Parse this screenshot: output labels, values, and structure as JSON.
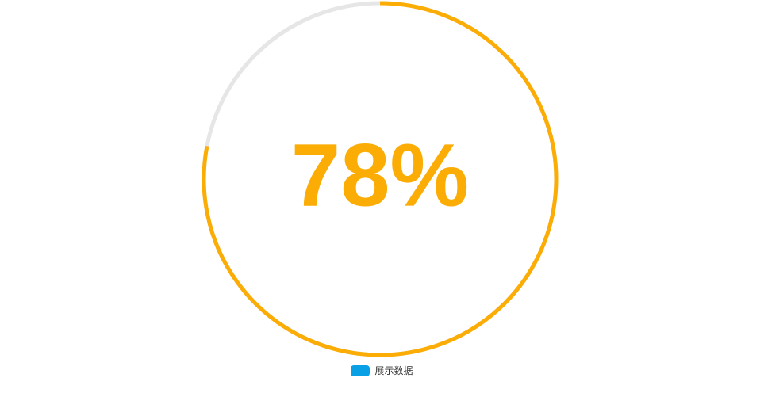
{
  "chart_data": {
    "type": "gauge",
    "value": 78,
    "max": 100,
    "label": "78%",
    "legend": [
      {
        "name": "展示数据",
        "color": "#0aa0e6"
      }
    ],
    "colors": {
      "progress": "#fbad06",
      "track": "#e6e6e6"
    }
  }
}
